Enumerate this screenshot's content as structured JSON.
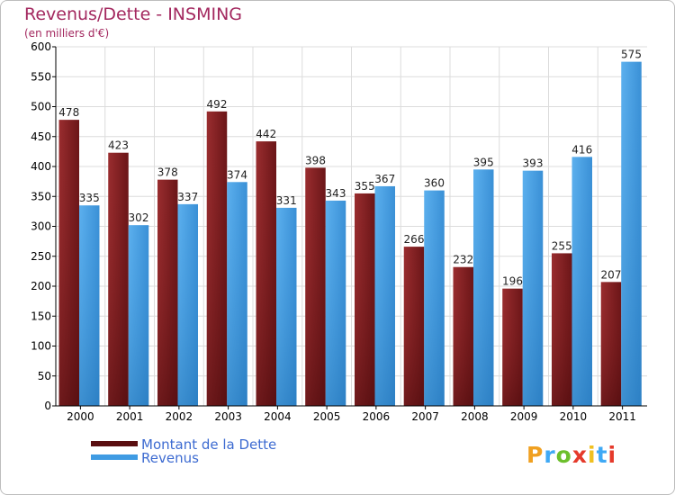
{
  "title": "Revenus/Dette - INSMING",
  "subtitle": "(en milliers d'€)",
  "logo": {
    "text": "Proxiti",
    "letter_colors": [
      "#f0a020",
      "#3fa9f5",
      "#6cbf2c",
      "#e53a2b",
      "#f0c020",
      "#3fa9f5",
      "#e53a2b"
    ]
  },
  "colors": {
    "dette": "#7a1c1e",
    "revenus": "#3f9be3",
    "grid": "#dcdcdc",
    "axis": "#000000",
    "title": "#a3285f",
    "legend_text": "#3d6bd1"
  },
  "chart_data": {
    "type": "bar",
    "categories": [
      "2000",
      "2001",
      "2002",
      "2003",
      "2004",
      "2005",
      "2006",
      "2007",
      "2008",
      "2009",
      "2010",
      "2011"
    ],
    "series": [
      {
        "name": "Montant de la Dette",
        "values": [
          478,
          423,
          378,
          492,
          442,
          398,
          355,
          266,
          232,
          196,
          255,
          207
        ]
      },
      {
        "name": "Revenus",
        "values": [
          335,
          302,
          337,
          374,
          331,
          343,
          367,
          360,
          395,
          393,
          416,
          575
        ]
      }
    ],
    "ylim": [
      0,
      600
    ],
    "yticks": [
      0,
      50,
      100,
      150,
      200,
      250,
      300,
      350,
      400,
      450,
      500,
      550,
      600
    ],
    "grid": true,
    "legend_position": "bottom-left"
  }
}
